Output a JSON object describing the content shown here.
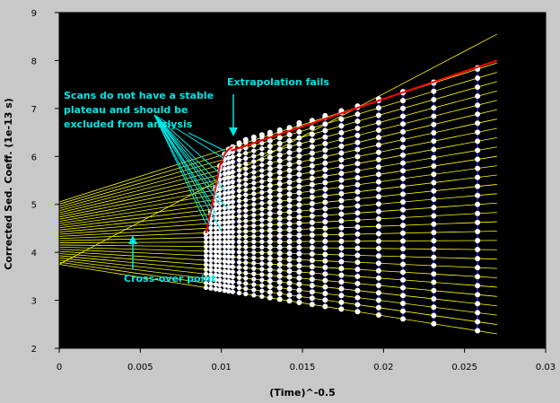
{
  "chart_data": {
    "type": "scatter",
    "title": "",
    "xlabel": "(Time)^-0.5",
    "ylabel": "Corrected Sed. Coeff. (1e-13 s)",
    "xlim": [
      0,
      0.03
    ],
    "ylim": [
      2,
      9
    ],
    "grid": false,
    "legend": "none",
    "colors": {
      "plot_background": "#000000",
      "frame_background": "#c8c8c8",
      "extrapolation_lines": "#ffff00",
      "data_points": "#ffffff",
      "blue_trace": "#2a2aff",
      "upper_fit": "#ff0000",
      "annotation_text": "#00e5e5"
    },
    "x_ticks": [
      "0",
      "0.005",
      "0.01",
      "0.015",
      "0.02",
      "0.025",
      "0.03"
    ],
    "y_ticks": [
      "2",
      "3",
      "4",
      "5",
      "6",
      "7",
      "8",
      "9"
    ],
    "scan_x": [
      0.00905,
      0.00935,
      0.00965,
      0.0099,
      0.0102,
      0.01045,
      0.0107,
      0.0111,
      0.0115,
      0.012,
      0.0125,
      0.013,
      0.0136,
      0.0142,
      0.0148,
      0.0156,
      0.0164,
      0.0174,
      0.0184,
      0.0197,
      0.0212,
      0.0231,
      0.0258
    ],
    "boundary_fraction_lines": {
      "count": 30,
      "y_at_x0_range": [
        3.75,
        5.05
      ],
      "y_at_xmax_range": [
        2.3,
        7.95
      ],
      "x_end": 0.027,
      "crossover_x": 0.0045,
      "crossover_y": 4.65
    },
    "top_fraction_points": {
      "x": [
        0.00905,
        0.00935,
        0.00965,
        0.0099,
        0.0102,
        0.01045,
        0.0107,
        0.0111,
        0.0115,
        0.012,
        0.0125,
        0.013,
        0.0136,
        0.0142,
        0.0148,
        0.0156,
        0.0164,
        0.0174,
        0.0184,
        0.0197,
        0.0212,
        0.0231,
        0.0258
      ],
      "y": [
        4.4,
        4.85,
        5.35,
        5.8,
        6.05,
        6.15,
        6.2,
        6.28,
        6.35,
        6.4,
        6.45,
        6.5,
        6.55,
        6.6,
        6.7,
        6.75,
        6.85,
        6.95,
        7.05,
        7.2,
        7.35,
        7.55,
        7.85
      ]
    },
    "upper_fit_line": {
      "x": [
        0.0106,
        0.027
      ],
      "y": [
        6.12,
        8.0
      ]
    },
    "extra_yellow_line": {
      "x": [
        0.0,
        0.027
      ],
      "y": [
        3.75,
        8.55
      ]
    },
    "annotations": [
      {
        "id": "plateau",
        "lines": [
          "Scans do not have a stable",
          "plateau and should be",
          "excluded from analysis"
        ]
      },
      {
        "id": "extrapolation",
        "lines": [
          "Extrapolation fails"
        ]
      },
      {
        "id": "crossover",
        "lines": [
          "Cross-over point"
        ]
      }
    ]
  }
}
